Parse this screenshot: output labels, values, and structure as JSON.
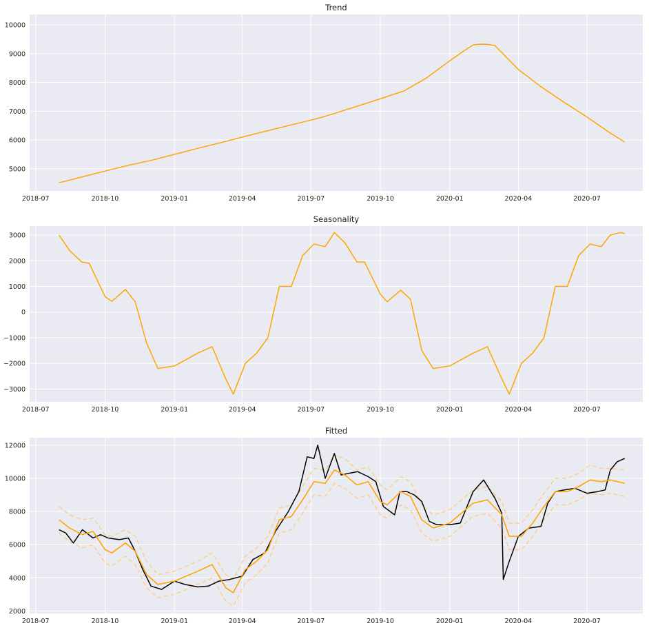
{
  "chart_data": [
    {
      "type": "line",
      "title": "Trend",
      "xlabel": "",
      "ylabel": "",
      "x_ticks": [
        "2018-07",
        "2018-10",
        "2019-01",
        "2019-04",
        "2019-07",
        "2019-10",
        "2020-01",
        "2020-04",
        "2020-07"
      ],
      "y_ticks": [
        "5000",
        "6000",
        "7000",
        "8000",
        "9000",
        "10000"
      ],
      "xlim": [
        "2018-06-23",
        "2020-09-13"
      ],
      "ylim": [
        4230,
        10360
      ],
      "grid": true,
      "colors": {
        "series": "#ffa500",
        "background": "#eaeaf2",
        "grid": "#ffffff"
      },
      "series": [
        {
          "x": [
            "2018-08-01",
            "2018-08-10",
            "2018-09-01",
            "2018-10-01",
            "2018-11-01",
            "2018-12-01",
            "2019-01-01",
            "2019-02-01",
            "2019-03-01",
            "2019-04-01",
            "2019-05-01",
            "2019-06-01",
            "2019-07-10",
            "2019-08-01",
            "2019-09-01",
            "2019-10-01",
            "2019-10-20",
            "2019-11-01",
            "2019-12-01",
            "2020-01-01",
            "2020-01-20",
            "2020-02-01",
            "2020-02-10",
            "2020-02-20",
            "2020-03-01",
            "2020-04-01",
            "2020-05-01",
            "2020-06-01",
            "2020-07-01",
            "2020-08-01",
            "2020-08-20"
          ],
          "values": [
            4520,
            4570,
            4720,
            4920,
            5120,
            5290,
            5500,
            5710,
            5890,
            6100,
            6300,
            6500,
            6750,
            6920,
            7180,
            7430,
            7600,
            7700,
            8150,
            8750,
            9100,
            9300,
            9330,
            9320,
            9280,
            8450,
            7850,
            7300,
            6800,
            6240,
            5930
          ]
        }
      ]
    },
    {
      "type": "line",
      "title": "Seasonality",
      "xlabel": "",
      "ylabel": "",
      "x_ticks": [
        "2018-07",
        "2018-10",
        "2019-01",
        "2019-04",
        "2019-07",
        "2019-10",
        "2020-01",
        "2020-04",
        "2020-07"
      ],
      "y_ticks": [
        "−3000",
        "−2000",
        "−1000",
        "0",
        "1000",
        "2000",
        "3000"
      ],
      "xlim": [
        "2018-06-23",
        "2020-09-13"
      ],
      "ylim": [
        -3500,
        3350
      ],
      "grid": true,
      "colors": {
        "series": "#ffa500",
        "background": "#eaeaf2",
        "grid": "#ffffff"
      },
      "series": [
        {
          "x": [
            "2018-08-01",
            "2018-08-15",
            "2018-08-31",
            "2018-09-10",
            "2018-10-01",
            "2018-10-10",
            "2018-10-28",
            "2018-11-10",
            "2018-11-25",
            "2018-12-10",
            "2019-01-01",
            "2019-02-01",
            "2019-02-20",
            "2019-03-10",
            "2019-03-20",
            "2019-04-05",
            "2019-04-20",
            "2019-05-05",
            "2019-05-20",
            "2019-06-05",
            "2019-06-20",
            "2019-07-05",
            "2019-07-20",
            "2019-08-01",
            "2019-08-15",
            "2019-08-31",
            "2019-09-10",
            "2019-10-01",
            "2019-10-10",
            "2019-10-28",
            "2019-11-10",
            "2019-11-25",
            "2019-12-10",
            "2020-01-01",
            "2020-02-01",
            "2020-02-20",
            "2020-03-10",
            "2020-03-20",
            "2020-04-05",
            "2020-04-20",
            "2020-05-05",
            "2020-05-20",
            "2020-06-05",
            "2020-06-20",
            "2020-07-05",
            "2020-07-20",
            "2020-08-01",
            "2020-08-15",
            "2020-08-20"
          ],
          "values": [
            3000,
            2400,
            1950,
            1900,
            600,
            420,
            880,
            400,
            -1200,
            -2200,
            -2100,
            -1600,
            -1350,
            -2600,
            -3200,
            -2000,
            -1600,
            -1000,
            1000,
            1000,
            2200,
            2650,
            2550,
            3100,
            2700,
            1950,
            1950,
            700,
            400,
            850,
            500,
            -1500,
            -2200,
            -2100,
            -1600,
            -1350,
            -2600,
            -3200,
            -2000,
            -1600,
            -1000,
            1000,
            1000,
            2200,
            2650,
            2550,
            3000,
            3100,
            3050
          ]
        }
      ]
    },
    {
      "type": "line",
      "title": "Fitted",
      "xlabel": "",
      "ylabel": "",
      "x_ticks": [
        "2018-07",
        "2018-10",
        "2019-01",
        "2019-04",
        "2019-07",
        "2019-10",
        "2020-01",
        "2020-04",
        "2020-07"
      ],
      "y_ticks": [
        "2000",
        "4000",
        "6000",
        "8000",
        "10000",
        "12000"
      ],
      "xlim": [
        "2018-06-23",
        "2020-09-13"
      ],
      "ylim": [
        1850,
        12450
      ],
      "grid": true,
      "colors": {
        "actual": "#000000",
        "fitted": "#ffa500",
        "bounds": "#ffcc80",
        "background": "#eaeaf2",
        "grid": "#ffffff"
      },
      "series": [
        {
          "style": "actual",
          "x": [
            "2018-08-01",
            "2018-08-10",
            "2018-08-20",
            "2018-09-01",
            "2018-09-15",
            "2018-09-25",
            "2018-10-05",
            "2018-10-20",
            "2018-11-01",
            "2018-11-10",
            "2018-11-20",
            "2018-12-01",
            "2018-12-15",
            "2019-01-01",
            "2019-01-15",
            "2019-02-01",
            "2019-02-15",
            "2019-03-01",
            "2019-03-15",
            "2019-04-01",
            "2019-04-15",
            "2019-05-01",
            "2019-05-15",
            "2019-06-01",
            "2019-06-15",
            "2019-06-26",
            "2019-07-05",
            "2019-07-10",
            "2019-07-20",
            "2019-08-01",
            "2019-08-10",
            "2019-08-20",
            "2019-09-01",
            "2019-09-15",
            "2019-09-25",
            "2019-10-05",
            "2019-10-20",
            "2019-10-27",
            "2019-11-05",
            "2019-11-15",
            "2019-11-25",
            "2019-12-05",
            "2019-12-15",
            "2020-01-01",
            "2020-01-15",
            "2020-02-01",
            "2020-02-15",
            "2020-03-01",
            "2020-03-10",
            "2020-03-12",
            "2020-03-20",
            "2020-04-01",
            "2020-04-15",
            "2020-05-01",
            "2020-05-10",
            "2020-05-20",
            "2020-06-01",
            "2020-06-15",
            "2020-07-01",
            "2020-07-15",
            "2020-07-25",
            "2020-08-01",
            "2020-08-10",
            "2020-08-20"
          ],
          "values": [
            6900,
            6700,
            6100,
            6900,
            6400,
            6600,
            6400,
            6300,
            6400,
            5600,
            4500,
            3500,
            3300,
            3800,
            3600,
            3450,
            3500,
            3800,
            3900,
            4100,
            5100,
            5500,
            6800,
            8000,
            9200,
            11300,
            11200,
            12000,
            10000,
            11500,
            10200,
            10300,
            10400,
            10100,
            9800,
            8300,
            7800,
            9200,
            9200,
            9000,
            8600,
            7400,
            7200,
            7200,
            7300,
            9200,
            9900,
            8800,
            7900,
            3900,
            5000,
            6500,
            7000,
            7100,
            8500,
            9200,
            9300,
            9400,
            9100,
            9200,
            9300,
            10500,
            11000,
            11200
          ]
        },
        {
          "style": "fitted",
          "x": [
            "2018-08-01",
            "2018-08-15",
            "2018-09-01",
            "2018-09-15",
            "2018-10-01",
            "2018-10-10",
            "2018-10-28",
            "2018-11-10",
            "2018-11-25",
            "2018-12-10",
            "2019-01-01",
            "2019-02-01",
            "2019-02-20",
            "2019-03-10",
            "2019-03-20",
            "2019-04-05",
            "2019-04-20",
            "2019-05-05",
            "2019-05-20",
            "2019-06-05",
            "2019-06-20",
            "2019-07-05",
            "2019-07-20",
            "2019-08-01",
            "2019-08-15",
            "2019-08-31",
            "2019-09-15",
            "2019-10-01",
            "2019-10-10",
            "2019-10-28",
            "2019-11-10",
            "2019-11-25",
            "2019-12-10",
            "2020-01-01",
            "2020-02-01",
            "2020-02-20",
            "2020-03-10",
            "2020-03-20",
            "2020-04-05",
            "2020-04-20",
            "2020-05-05",
            "2020-05-20",
            "2020-06-05",
            "2020-06-20",
            "2020-07-05",
            "2020-07-20",
            "2020-08-01",
            "2020-08-20"
          ],
          "values": [
            7500,
            7000,
            6600,
            6800,
            5700,
            5500,
            6100,
            5600,
            4200,
            3600,
            3800,
            4400,
            4800,
            3400,
            3100,
            4500,
            5000,
            5700,
            7500,
            7700,
            8700,
            9800,
            9700,
            10500,
            10200,
            9600,
            9800,
            8600,
            8400,
            9200,
            8900,
            7500,
            7000,
            7300,
            8500,
            8700,
            7800,
            6500,
            6500,
            7300,
            8300,
            9200,
            9200,
            9500,
            9900,
            9800,
            9900,
            9700
          ]
        },
        {
          "style": "bound",
          "x": [
            "2018-08-01",
            "2018-08-15",
            "2018-09-01",
            "2018-09-15",
            "2018-10-01",
            "2018-10-10",
            "2018-10-28",
            "2018-11-10",
            "2018-11-25",
            "2018-12-10",
            "2019-01-01",
            "2019-02-01",
            "2019-02-20",
            "2019-03-10",
            "2019-03-20",
            "2019-04-05",
            "2019-04-20",
            "2019-05-05",
            "2019-05-20",
            "2019-06-05",
            "2019-06-20",
            "2019-07-05",
            "2019-07-20",
            "2019-08-01",
            "2019-08-15",
            "2019-08-31",
            "2019-09-15",
            "2019-10-01",
            "2019-10-10",
            "2019-10-28",
            "2019-11-10",
            "2019-11-25",
            "2019-12-10",
            "2020-01-01",
            "2020-02-01",
            "2020-02-20",
            "2020-03-10",
            "2020-03-20",
            "2020-04-05",
            "2020-04-20",
            "2020-05-05",
            "2020-05-20",
            "2020-06-05",
            "2020-06-20",
            "2020-07-05",
            "2020-07-20",
            "2020-08-01",
            "2020-08-20"
          ],
          "values": [
            8300,
            7800,
            7500,
            7600,
            6600,
            6500,
            6900,
            6500,
            5000,
            4200,
            4400,
            5000,
            5500,
            4200,
            3900,
            5300,
            5800,
            6500,
            8200,
            8400,
            9500,
            10600,
            10500,
            11400,
            11200,
            10500,
            10700,
            9600,
            9300,
            10100,
            9800,
            8400,
            7800,
            8100,
            9300,
            9500,
            8600,
            7300,
            7300,
            8100,
            9100,
            10000,
            10000,
            10300,
            10800,
            10600,
            10600,
            10500
          ]
        },
        {
          "style": "bound",
          "x": [
            "2018-08-01",
            "2018-08-15",
            "2018-09-01",
            "2018-09-15",
            "2018-10-01",
            "2018-10-10",
            "2018-10-28",
            "2018-11-10",
            "2018-11-25",
            "2018-12-10",
            "2019-01-01",
            "2019-02-01",
            "2019-02-20",
            "2019-03-10",
            "2019-03-20",
            "2019-04-05",
            "2019-04-20",
            "2019-05-05",
            "2019-05-20",
            "2019-06-05",
            "2019-06-20",
            "2019-07-05",
            "2019-07-20",
            "2019-08-01",
            "2019-08-15",
            "2019-08-31",
            "2019-09-15",
            "2019-10-01",
            "2019-10-10",
            "2019-10-28",
            "2019-11-10",
            "2019-11-25",
            "2019-12-10",
            "2020-01-01",
            "2020-02-01",
            "2020-02-20",
            "2020-03-10",
            "2020-03-20",
            "2020-04-05",
            "2020-04-20",
            "2020-05-05",
            "2020-05-20",
            "2020-06-05",
            "2020-06-20",
            "2020-07-05",
            "2020-07-20",
            "2020-08-01",
            "2020-08-20"
          ],
          "values": [
            6700,
            6200,
            5800,
            6000,
            4900,
            4700,
            5300,
            4800,
            3400,
            2800,
            3000,
            3600,
            4000,
            2600,
            2300,
            3700,
            4200,
            4900,
            6700,
            6900,
            7900,
            9000,
            8900,
            9700,
            9400,
            8800,
            9000,
            7800,
            7600,
            8400,
            8100,
            6700,
            6200,
            6500,
            7700,
            7900,
            7000,
            5700,
            5700,
            6500,
            7500,
            8400,
            8400,
            8700,
            9100,
            9000,
            9100,
            8900
          ]
        }
      ]
    }
  ]
}
